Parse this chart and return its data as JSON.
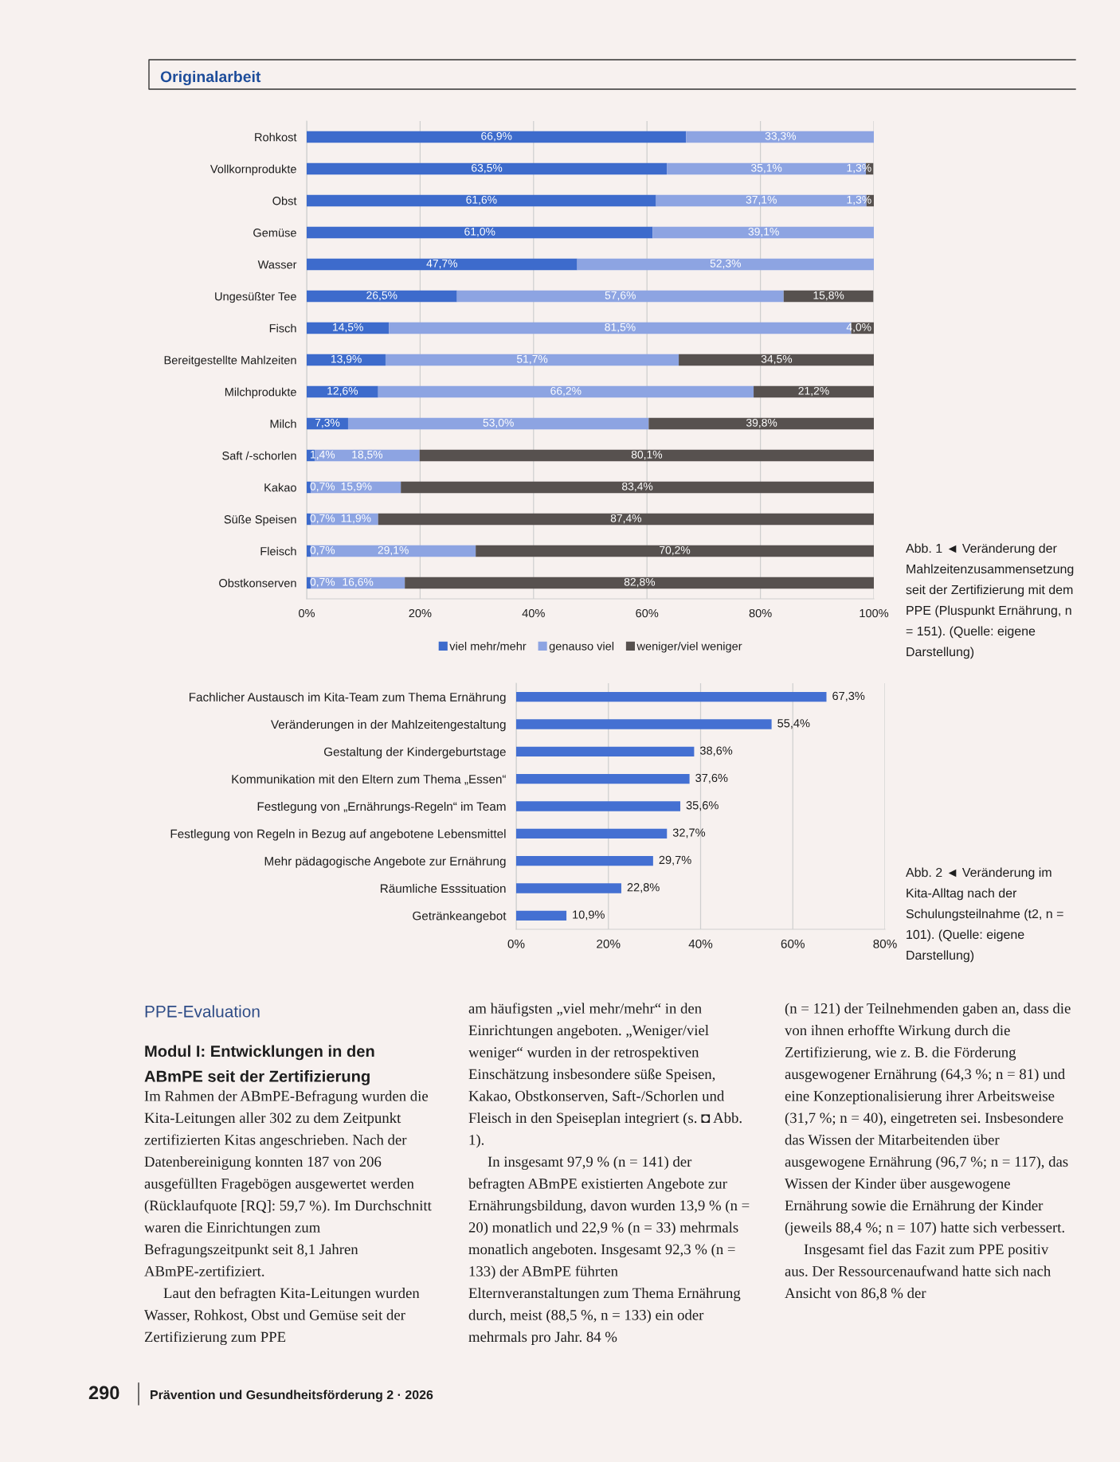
{
  "chart_data": [
    {
      "type": "other",
      "title": "Originalarbeit"
    },
    {
      "type": "bar",
      "orientation": "horizontal",
      "stacked": true,
      "categories": [
        "Rohkost",
        "Vollkornprodukte",
        "Obst",
        "Gemüse",
        "Wasser",
        "Ungesüßter Tee",
        "Fisch",
        "Bereitgestellte Mahlzeiten",
        "Milchprodukte",
        "Milch",
        "Saft /-schorlen",
        "Kakao",
        "Süße Speisen",
        "Fleisch",
        "Obstkonserven"
      ],
      "series": [
        {
          "name": "viel mehr/mehr",
          "color": "#3d6bcc",
          "values": [
            66.9,
            63.5,
            61.6,
            61.0,
            47.7,
            26.5,
            14.5,
            13.9,
            12.6,
            7.3,
            1.4,
            0.7,
            0.7,
            0.7,
            0.7
          ],
          "value_labels": [
            "66,9%",
            "63,5%",
            "61,6%",
            "61,0%",
            "47,7%",
            "26,5%",
            "14,5%",
            "13,9%",
            "12,6%",
            "7,3%",
            "1,4%",
            "0,7%",
            "0,7%",
            "0,7%",
            "0,7%"
          ]
        },
        {
          "name": "genauso viel",
          "color": "#8da4e2",
          "values": [
            33.3,
            35.1,
            37.1,
            39.1,
            52.3,
            57.6,
            81.5,
            51.7,
            66.2,
            53.0,
            18.5,
            15.9,
            11.9,
            29.1,
            16.6
          ],
          "value_labels": [
            "33,3%",
            "35,1%",
            "37,1%",
            "39,1%",
            "52,3%",
            "57,6%",
            "81,5%",
            "51,7%",
            "66,2%",
            "53,0%",
            "18,5%",
            "15,9%",
            "11,9%",
            "29,1%",
            "16,6%"
          ]
        },
        {
          "name": "weniger/viel weniger",
          "color": "#57514f",
          "values": [
            null,
            1.3,
            1.3,
            null,
            null,
            15.8,
            4.0,
            34.5,
            21.2,
            39.8,
            80.1,
            83.4,
            87.4,
            70.2,
            82.8
          ],
          "value_labels": [
            null,
            "1,3%",
            "1,3%",
            null,
            null,
            "15,8%",
            "4,0%",
            "34,5%",
            "21,2%",
            "39,8%",
            "80,1%",
            "83,4%",
            "87,4%",
            "70,2%",
            "82,8%"
          ]
        }
      ],
      "xlim": [
        0,
        100
      ],
      "xticks": [
        {
          "value": 0,
          "label": "0%"
        },
        {
          "value": 20,
          "label": "20%"
        },
        {
          "value": 40,
          "label": "40%"
        },
        {
          "value": 60,
          "label": "60%"
        },
        {
          "value": 80,
          "label": "80%"
        },
        {
          "value": 100,
          "label": "100%"
        }
      ],
      "grid": "x",
      "legend": "bottom",
      "annotations": [
        "Abb. 1 ◄ Veränderung der Mahlzeitenzusammensetzung seit der Zertifizierung mit dem PPE (Pluspunkt Ernährung, n = 151). (Quelle: eigene Darstellung)"
      ]
    },
    {
      "type": "bar",
      "orientation": "horizontal",
      "categories": [
        "Fachlicher Austausch im Kita-Team zum Thema Ernährung",
        "Veränderungen in der Mahlzeitengestaltung",
        "Gestaltung der Kindergeburtstage",
        "Kommunikation mit den Eltern zum Thema „Essen“",
        "Festlegung von „Ernährungs-Regeln“ im Team",
        "Festlegung von Regeln in Bezug auf angebotene Lebensmittel",
        "Mehr pädagogische Angebote zur Ernährung",
        "Räumliche Esssituation",
        "Getränkeangebot"
      ],
      "values": [
        67.3,
        55.4,
        38.6,
        37.6,
        35.6,
        32.7,
        29.7,
        22.8,
        10.9
      ],
      "value_labels": [
        "67,3%",
        "55,4%",
        "38,6%",
        "37,6%",
        "35,6%",
        "32,7%",
        "29,7%",
        "22,8%",
        "10,9%"
      ],
      "color": "#4470d2",
      "xlim": [
        0,
        80
      ],
      "xticks": [
        {
          "value": 0,
          "label": "0%"
        },
        {
          "value": 20,
          "label": "20%"
        },
        {
          "value": 40,
          "label": "40%"
        },
        {
          "value": 60,
          "label": "60%"
        },
        {
          "value": 80,
          "label": "80%"
        }
      ],
      "grid": "x",
      "annotations": [
        "Abb. 2 ◄ Veränderung im Kita-Alltag nach der Schulungsteilnahme (t2, n = 101). (Quelle: eigene Darstellung)"
      ]
    },
    {
      "type": "other",
      "title": "PPE-Evaluation",
      "subtitle": "Modul I: Entwicklungen in den ABmPE seit der Zertifizierung",
      "annotations": [
        "Im Rahmen der ABmPE-Befragung wurden die Kita-Leitungen aller 302 zu dem Zeitpunkt zertifizierten Kitas angeschrieben. Nach der Datenbereinigung konnten 187 von 206 ausgefüllten Fragebögen ausgewertet werden (Rücklaufquote [RQ]: 59,7 %). Im Durchschnitt waren die Einrichtungen zum Befragungszeitpunkt seit 8,1 Jahren ABmPE-zertifiziert.",
        "Laut den befragten Kita-Leitungen wurden Wasser, Rohkost, Obst und Gemüse seit der Zertifizierung zum PPE"
      ]
    },
    {
      "type": "other",
      "annotations": [
        "am häufigsten „viel mehr/mehr“ in den Einrichtungen angeboten. „Weniger/viel weniger“ wurden in der retrospektiven Einschätzung insbesondere süße Speisen, Kakao, Obstkonserven, Saft-/Schorlen und Fleisch in den Speiseplan integriert (s. ◘ Abb. 1).",
        "In insgesamt 97,9 % (n = 141) der befragten ABmPE existierten Angebote zur Ernährungsbildung, davon wurden 13,9 % (n = 20) monatlich und 22,9 % (n = 33) mehrmals monatlich angeboten. Insgesamt 92,3 % (n = 133) der ABmPE führten Elternveranstaltungen zum Thema Ernährung durch, meist (88,5 %, n = 133) ein oder mehrmals pro Jahr. 84 %"
      ]
    },
    {
      "type": "other",
      "annotations": [
        "(n = 121) der Teilnehmenden gaben an, dass die von ihnen erhoffte Wirkung durch die Zertifizierung, wie z. B. die Förderung ausgewogener Ernährung (64,3 %; n = 81) und eine Konzeptionalisierung ihrer Arbeitsweise (31,7 %; n = 40), eingetreten sei. Insbesondere das Wissen der Mitarbeitenden über ausgewogene Ernährung (96,7 %; n = 117), das Wissen der Kinder über ausgewogene Ernährung sowie die Ernährung der Kinder (jeweils 88,4 %; n = 107) hatte sich verbessert.",
        "Insgesamt fiel das Fazit zum PPE positiv aus. Der Ressourcenaufwand hatte sich nach Ansicht von 86,8 % der"
      ]
    },
    {
      "type": "other",
      "annotations": [
        "290",
        "Prävention und Gesundheitsförderung 2 · 2026"
      ]
    }
  ]
}
